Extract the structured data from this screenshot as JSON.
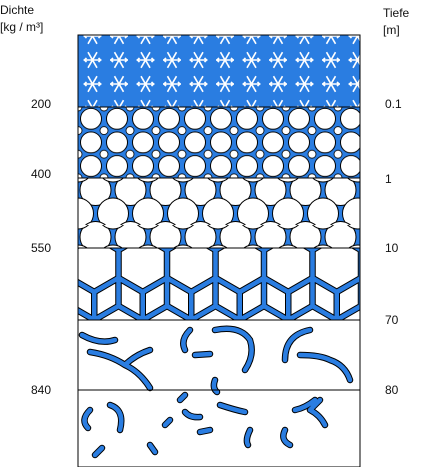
{
  "left_axis": {
    "title": "Dichte",
    "unit": "[kg / m³]",
    "labels": [
      "200",
      "400",
      "550",
      "840"
    ]
  },
  "right_axis": {
    "title": "Tiefe",
    "unit": "[m]",
    "labels": [
      "0.1",
      "1",
      "10",
      "70",
      "80"
    ]
  }
}
